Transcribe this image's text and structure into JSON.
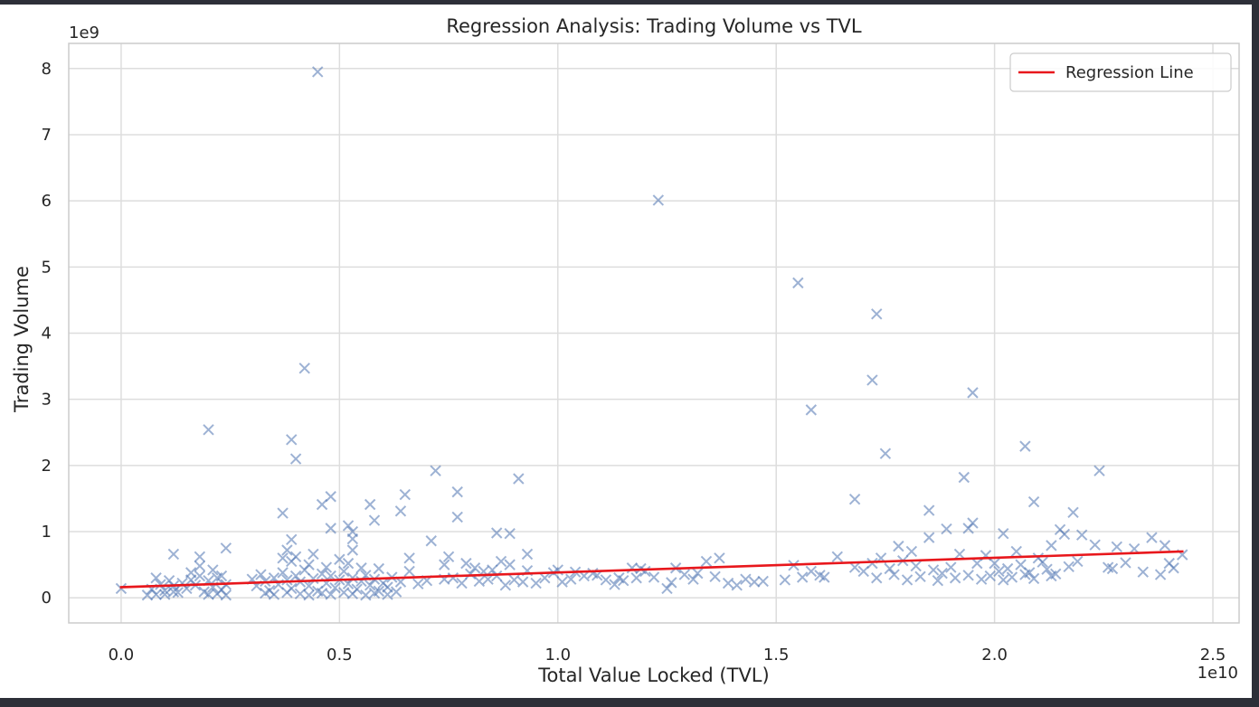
{
  "chart_data": {
    "type": "scatter",
    "title": "Regression Analysis: Trading Volume vs TVL",
    "xlabel": "Total Value Locked (TVL)",
    "ylabel": "Trading Volume",
    "x_offset_label": "1e10",
    "y_offset_label": "1e9",
    "xlim": [
      -0.12,
      2.56
    ],
    "ylim": [
      -0.38,
      8.38
    ],
    "x_ticks": [
      0.0,
      0.5,
      1.0,
      1.5,
      2.0,
      2.5
    ],
    "x_tick_labels": [
      "0.0",
      "0.5",
      "1.0",
      "1.5",
      "2.0",
      "2.5"
    ],
    "y_ticks": [
      0,
      1,
      2,
      3,
      4,
      5,
      6,
      7,
      8
    ],
    "y_tick_labels": [
      "0",
      "1",
      "2",
      "3",
      "4",
      "5",
      "6",
      "7",
      "8"
    ],
    "grid": true,
    "legend": {
      "position": "top-right",
      "entries": [
        "Regression Line"
      ]
    },
    "colors": {
      "points": "#4c72b0",
      "regression": "#e8171c",
      "grid": "#dddddd",
      "spine": "#cccccc"
    },
    "regression_line": {
      "x": [
        0.0,
        2.43
      ],
      "y": [
        0.16,
        0.7
      ]
    },
    "series": [
      {
        "marker": "x",
        "points": [
          [
            0.45,
            7.95
          ],
          [
            1.23,
            6.01
          ],
          [
            1.55,
            4.76
          ],
          [
            1.73,
            4.29
          ],
          [
            0.42,
            3.47
          ],
          [
            1.72,
            3.29
          ],
          [
            1.95,
            3.1
          ],
          [
            1.58,
            2.84
          ],
          [
            0.2,
            2.54
          ],
          [
            0.39,
            2.39
          ],
          [
            2.07,
            2.29
          ],
          [
            1.75,
            2.18
          ],
          [
            0.4,
            2.1
          ],
          [
            0.72,
            1.92
          ],
          [
            2.24,
            1.92
          ],
          [
            1.93,
            1.82
          ],
          [
            0.91,
            1.8
          ],
          [
            0.77,
            1.6
          ],
          [
            0.65,
            1.56
          ],
          [
            0.48,
            1.53
          ],
          [
            1.68,
            1.49
          ],
          [
            2.09,
            1.45
          ],
          [
            0.46,
            1.41
          ],
          [
            0.57,
            1.41
          ],
          [
            1.85,
            1.32
          ],
          [
            0.37,
            1.28
          ],
          [
            2.18,
            1.29
          ],
          [
            0.64,
            1.31
          ],
          [
            0.77,
            1.22
          ],
          [
            0.58,
            1.17
          ],
          [
            1.95,
            1.13
          ],
          [
            1.94,
            1.05
          ],
          [
            0.52,
            1.09
          ],
          [
            1.89,
            1.04
          ],
          [
            2.15,
            1.03
          ],
          [
            0.48,
            1.05
          ],
          [
            0.53,
            1.0
          ],
          [
            2.16,
            0.96
          ],
          [
            1.85,
            0.91
          ],
          [
            0.86,
            0.98
          ],
          [
            0.89,
            0.97
          ],
          [
            0.39,
            0.88
          ],
          [
            0.71,
            0.86
          ],
          [
            2.02,
            0.97
          ],
          [
            0.53,
            0.89
          ],
          [
            2.2,
            0.95
          ],
          [
            2.36,
            0.91
          ],
          [
            1.78,
            0.78
          ],
          [
            0.24,
            0.75
          ],
          [
            0.38,
            0.72
          ],
          [
            0.53,
            0.72
          ],
          [
            0.44,
            0.66
          ],
          [
            0.93,
            0.66
          ],
          [
            0.12,
            0.66
          ],
          [
            0.18,
            0.62
          ],
          [
            0.75,
            0.62
          ],
          [
            1.37,
            0.6
          ],
          [
            1.64,
            0.62
          ],
          [
            1.92,
            0.66
          ],
          [
            2.23,
            0.8
          ],
          [
            2.28,
            0.77
          ],
          [
            2.32,
            0.74
          ],
          [
            2.39,
            0.79
          ],
          [
            1.98,
            0.64
          ],
          [
            1.81,
            0.7
          ],
          [
            2.13,
            0.79
          ],
          [
            1.74,
            0.6
          ],
          [
            1.34,
            0.55
          ],
          [
            1.17,
            0.45
          ],
          [
            1.2,
            0.4
          ],
          [
            0.99,
            0.38
          ],
          [
            0.85,
            0.42
          ],
          [
            0.81,
            0.45
          ],
          [
            0.74,
            0.5
          ],
          [
            0.66,
            0.4
          ],
          [
            0.59,
            0.44
          ],
          [
            1.54,
            0.49
          ],
          [
            1.58,
            0.4
          ],
          [
            1.61,
            0.31
          ],
          [
            1.88,
            0.37
          ],
          [
            2.0,
            0.52
          ],
          [
            2.05,
            0.7
          ],
          [
            2.11,
            0.54
          ],
          [
            2.26,
            0.46
          ],
          [
            2.3,
            0.53
          ],
          [
            2.34,
            0.39
          ],
          [
            2.4,
            0.52
          ],
          [
            2.43,
            0.65
          ],
          [
            2.41,
            0.45
          ],
          [
            2.38,
            0.35
          ],
          [
            2.27,
            0.44
          ],
          [
            1.41,
            0.19
          ],
          [
            1.39,
            0.22
          ],
          [
            1.45,
            0.24
          ],
          [
            1.47,
            0.25
          ],
          [
            1.52,
            0.27
          ],
          [
            1.31,
            0.28
          ],
          [
            1.29,
            0.35
          ],
          [
            1.26,
            0.23
          ],
          [
            1.25,
            0.14
          ],
          [
            1.22,
            0.31
          ],
          [
            1.18,
            0.3
          ],
          [
            1.15,
            0.26
          ],
          [
            1.13,
            0.2
          ],
          [
            1.11,
            0.27
          ],
          [
            1.08,
            0.37
          ],
          [
            1.06,
            0.33
          ],
          [
            1.03,
            0.28
          ],
          [
            1.01,
            0.24
          ],
          [
            0.97,
            0.3
          ],
          [
            0.95,
            0.22
          ],
          [
            0.92,
            0.24
          ],
          [
            0.9,
            0.27
          ],
          [
            0.88,
            0.19
          ],
          [
            0.86,
            0.33
          ],
          [
            0.84,
            0.28
          ],
          [
            0.82,
            0.25
          ],
          [
            0.8,
            0.36
          ],
          [
            0.78,
            0.22
          ],
          [
            0.76,
            0.3
          ],
          [
            0.74,
            0.28
          ],
          [
            0.7,
            0.26
          ],
          [
            0.68,
            0.21
          ],
          [
            0.64,
            0.24
          ],
          [
            0.62,
            0.31
          ],
          [
            0.61,
            0.16
          ],
          [
            0.6,
            0.22
          ],
          [
            0.59,
            0.1
          ],
          [
            0.58,
            0.28
          ],
          [
            0.57,
            0.19
          ],
          [
            0.56,
            0.34
          ],
          [
            0.55,
            0.25
          ],
          [
            0.54,
            0.13
          ],
          [
            0.53,
            0.3
          ],
          [
            0.52,
            0.21
          ],
          [
            0.51,
            0.4
          ],
          [
            0.5,
            0.27
          ],
          [
            0.49,
            0.15
          ],
          [
            0.48,
            0.33
          ],
          [
            0.47,
            0.22
          ],
          [
            0.46,
            0.36
          ],
          [
            0.45,
            0.1
          ],
          [
            0.44,
            0.29
          ],
          [
            0.43,
            0.18
          ],
          [
            0.42,
            0.42
          ],
          [
            0.41,
            0.24
          ],
          [
            0.4,
            0.33
          ],
          [
            0.39,
            0.14
          ],
          [
            0.38,
            0.27
          ],
          [
            0.37,
            0.38
          ],
          [
            0.36,
            0.2
          ],
          [
            0.35,
            0.3
          ],
          [
            0.34,
            0.11
          ],
          [
            0.33,
            0.25
          ],
          [
            0.32,
            0.35
          ],
          [
            0.31,
            0.18
          ],
          [
            0.3,
            0.28
          ],
          [
            0.24,
            0.2
          ],
          [
            0.23,
            0.12
          ],
          [
            0.22,
            0.3
          ],
          [
            0.21,
            0.16
          ],
          [
            0.2,
            0.26
          ],
          [
            0.19,
            0.09
          ],
          [
            0.18,
            0.33
          ],
          [
            0.17,
            0.19
          ],
          [
            0.16,
            0.27
          ],
          [
            0.15,
            0.14
          ],
          [
            0.14,
            0.22
          ],
          [
            0.13,
            0.08
          ],
          [
            0.12,
            0.18
          ],
          [
            0.11,
            0.26
          ],
          [
            0.1,
            0.11
          ],
          [
            0.09,
            0.2
          ],
          [
            0.08,
            0.05
          ],
          [
            0.07,
            0.13
          ],
          [
            0.06,
            0.04
          ],
          [
            0.0,
            0.14
          ],
          [
            0.08,
            0.3
          ],
          [
            0.1,
            0.05
          ],
          [
            0.12,
            0.09
          ],
          [
            0.2,
            0.05
          ],
          [
            0.22,
            0.06
          ],
          [
            0.24,
            0.04
          ],
          [
            0.33,
            0.07
          ],
          [
            0.35,
            0.05
          ],
          [
            0.38,
            0.08
          ],
          [
            0.41,
            0.06
          ],
          [
            0.43,
            0.04
          ],
          [
            0.46,
            0.07
          ],
          [
            0.48,
            0.05
          ],
          [
            0.51,
            0.08
          ],
          [
            0.53,
            0.06
          ],
          [
            0.56,
            0.04
          ],
          [
            0.58,
            0.07
          ],
          [
            0.61,
            0.05
          ],
          [
            0.63,
            0.09
          ],
          [
            0.16,
            0.38
          ],
          [
            0.18,
            0.48
          ],
          [
            0.21,
            0.42
          ],
          [
            0.23,
            0.33
          ],
          [
            0.39,
            0.55
          ],
          [
            0.4,
            0.62
          ],
          [
            0.43,
            0.5
          ],
          [
            0.47,
            0.46
          ],
          [
            0.5,
            0.58
          ],
          [
            0.52,
            0.52
          ],
          [
            0.55,
            0.45
          ],
          [
            0.37,
            0.6
          ],
          [
            1.72,
            0.52
          ],
          [
            1.76,
            0.44
          ],
          [
            1.79,
            0.56
          ],
          [
            1.82,
            0.48
          ],
          [
            1.86,
            0.42
          ],
          [
            1.9,
            0.46
          ],
          [
            1.96,
            0.52
          ],
          [
            2.01,
            0.4
          ],
          [
            2.03,
            0.44
          ],
          [
            2.06,
            0.5
          ],
          [
            2.08,
            0.38
          ],
          [
            2.1,
            0.6
          ],
          [
            2.12,
            0.43
          ],
          [
            2.14,
            0.36
          ],
          [
            2.17,
            0.47
          ],
          [
            1.73,
            0.3
          ],
          [
            1.77,
            0.35
          ],
          [
            1.8,
            0.27
          ],
          [
            1.83,
            0.32
          ],
          [
            1.87,
            0.26
          ],
          [
            1.91,
            0.3
          ],
          [
            1.94,
            0.34
          ],
          [
            1.97,
            0.28
          ],
          [
            1.99,
            0.33
          ],
          [
            2.02,
            0.27
          ],
          [
            2.04,
            0.31
          ],
          [
            2.07,
            0.35
          ],
          [
            2.09,
            0.29
          ],
          [
            2.13,
            0.33
          ],
          [
            2.19,
            0.55
          ],
          [
            1.7,
            0.4
          ],
          [
            1.68,
            0.46
          ],
          [
            0.66,
            0.6
          ],
          [
            0.79,
            0.52
          ],
          [
            0.83,
            0.4
          ],
          [
            0.87,
            0.55
          ],
          [
            0.89,
            0.5
          ],
          [
            0.93,
            0.41
          ],
          [
            1.0,
            0.42
          ],
          [
            1.04,
            0.39
          ],
          [
            1.09,
            0.34
          ],
          [
            1.14,
            0.3
          ],
          [
            1.19,
            0.44
          ],
          [
            1.27,
            0.45
          ],
          [
            1.32,
            0.37
          ],
          [
            1.36,
            0.32
          ],
          [
            1.43,
            0.28
          ],
          [
            1.56,
            0.31
          ],
          [
            1.6,
            0.34
          ]
        ]
      }
    ]
  }
}
